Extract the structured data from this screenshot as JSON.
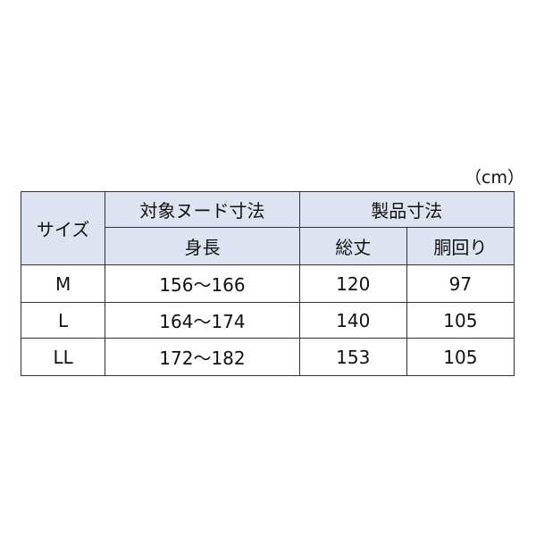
{
  "unit": "（cm）",
  "header": {
    "size": "サイズ",
    "nude_group": "対象ヌード寸法",
    "product_group": "製品寸法",
    "height": "身長",
    "length": "総丈",
    "waist": "胴回り"
  },
  "header_bg": "#dde3f0",
  "rows": [
    {
      "size": "M",
      "height": "156〜166",
      "length": "120",
      "waist": "97"
    },
    {
      "size": "L",
      "height": "164〜174",
      "length": "140",
      "waist": "105"
    },
    {
      "size": "LL",
      "height": "172〜182",
      "length": "153",
      "waist": "105"
    }
  ]
}
